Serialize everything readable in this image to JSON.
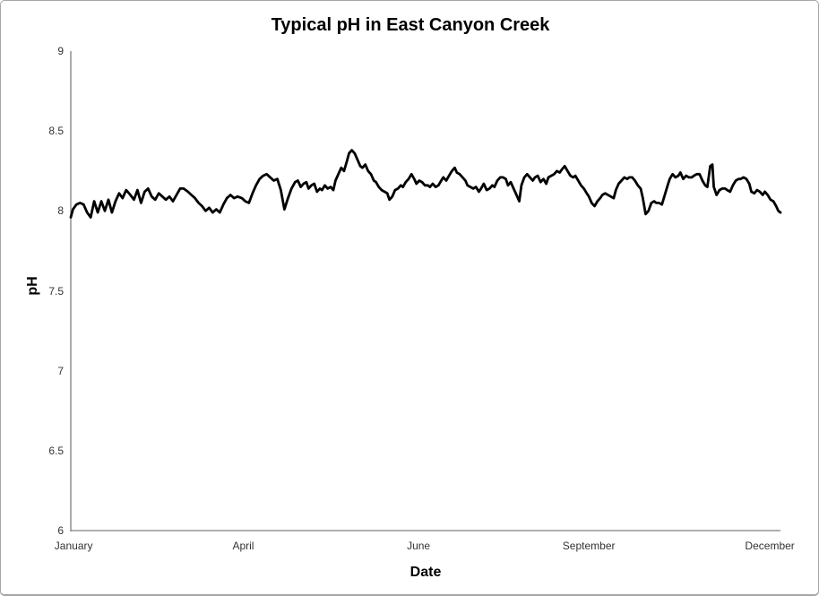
{
  "window": {
    "background_color": "#ffffff",
    "border_color": "#a6a6a6"
  },
  "chart_data": {
    "type": "line",
    "title": "Typical pH in East Canyon Creek",
    "xlabel": "Date",
    "ylabel": "pH",
    "ylim": [
      6,
      9
    ],
    "grid": false,
    "legend": "none",
    "line_color": "#000000",
    "line_width": 2.8,
    "axis_color": "#808080",
    "tick_label_color": "#333333",
    "ytick_labels": [
      "9",
      "8.5",
      "8",
      "7.5",
      "7",
      "6.5",
      "6"
    ],
    "ytick_values": [
      9,
      8.5,
      8,
      7.5,
      7,
      6.5,
      6
    ],
    "xticks": [
      {
        "label": "January",
        "f": 0.004
      },
      {
        "label": "April",
        "f": 0.243
      },
      {
        "label": "June",
        "f": 0.49
      },
      {
        "label": "September",
        "f": 0.73
      },
      {
        "label": "December",
        "f": 0.985
      }
    ],
    "series": [
      {
        "name": "Typical pH",
        "x_frac": [
          0.0,
          0.003,
          0.008,
          0.013,
          0.018,
          0.023,
          0.028,
          0.033,
          0.038,
          0.043,
          0.048,
          0.053,
          0.058,
          0.063,
          0.068,
          0.073,
          0.078,
          0.084,
          0.089,
          0.094,
          0.099,
          0.104,
          0.109,
          0.114,
          0.119,
          0.124,
          0.129,
          0.134,
          0.139,
          0.144,
          0.149,
          0.154,
          0.159,
          0.165,
          0.17,
          0.175,
          0.18,
          0.185,
          0.19,
          0.195,
          0.2,
          0.205,
          0.21,
          0.215,
          0.22,
          0.225,
          0.23,
          0.235,
          0.241,
          0.246,
          0.251,
          0.256,
          0.261,
          0.266,
          0.271,
          0.276,
          0.281,
          0.286,
          0.291,
          0.296,
          0.301,
          0.306,
          0.311,
          0.316,
          0.32,
          0.324,
          0.328,
          0.332,
          0.335,
          0.339,
          0.343,
          0.347,
          0.351,
          0.354,
          0.358,
          0.362,
          0.366,
          0.37,
          0.373,
          0.377,
          0.381,
          0.385,
          0.389,
          0.392,
          0.396,
          0.4,
          0.404,
          0.408,
          0.411,
          0.415,
          0.419,
          0.423,
          0.427,
          0.43,
          0.434,
          0.438,
          0.442,
          0.446,
          0.449,
          0.453,
          0.457,
          0.461,
          0.465,
          0.468,
          0.472,
          0.476,
          0.48,
          0.484,
          0.487,
          0.491,
          0.495,
          0.499,
          0.503,
          0.506,
          0.51,
          0.514,
          0.518,
          0.522,
          0.525,
          0.529,
          0.533,
          0.537,
          0.541,
          0.544,
          0.548,
          0.552,
          0.556,
          0.559,
          0.563,
          0.567,
          0.571,
          0.575,
          0.578,
          0.582,
          0.586,
          0.59,
          0.594,
          0.597,
          0.601,
          0.605,
          0.609,
          0.613,
          0.616,
          0.62,
          0.624,
          0.628,
          0.632,
          0.635,
          0.639,
          0.643,
          0.647,
          0.651,
          0.654,
          0.658,
          0.662,
          0.666,
          0.67,
          0.673,
          0.677,
          0.681,
          0.685,
          0.689,
          0.692,
          0.696,
          0.7,
          0.704,
          0.708,
          0.711,
          0.715,
          0.719,
          0.723,
          0.727,
          0.73,
          0.734,
          0.738,
          0.742,
          0.746,
          0.749,
          0.753,
          0.757,
          0.761,
          0.765,
          0.768,
          0.772,
          0.776,
          0.78,
          0.784,
          0.787,
          0.791,
          0.795,
          0.799,
          0.803,
          0.806,
          0.81,
          0.814,
          0.818,
          0.822,
          0.825,
          0.829,
          0.833,
          0.837,
          0.841,
          0.844,
          0.848,
          0.852,
          0.856,
          0.859,
          0.863,
          0.867,
          0.871,
          0.875,
          0.878,
          0.882,
          0.886,
          0.89,
          0.894,
          0.897,
          0.901,
          0.904,
          0.906,
          0.91,
          0.914,
          0.918,
          0.922,
          0.925,
          0.929,
          0.933,
          0.937,
          0.941,
          0.944,
          0.948,
          0.952,
          0.956,
          0.959,
          0.963,
          0.967,
          0.971,
          0.975,
          0.978,
          0.982,
          0.986,
          0.99,
          0.994,
          0.997,
          1.0
        ],
        "ph": [
          7.96,
          8.01,
          8.04,
          8.05,
          8.04,
          7.99,
          7.96,
          8.06,
          7.99,
          8.06,
          8.0,
          8.07,
          7.99,
          8.06,
          8.11,
          8.08,
          8.13,
          8.1,
          8.07,
          8.13,
          8.05,
          8.12,
          8.14,
          8.09,
          8.07,
          8.11,
          8.09,
          8.07,
          8.09,
          8.06,
          8.1,
          8.14,
          8.14,
          8.12,
          8.1,
          8.08,
          8.05,
          8.03,
          8.0,
          8.02,
          7.99,
          8.01,
          7.99,
          8.04,
          8.08,
          8.1,
          8.08,
          8.09,
          8.08,
          8.06,
          8.05,
          8.11,
          8.16,
          8.2,
          8.22,
          8.23,
          8.21,
          8.19,
          8.2,
          8.13,
          8.01,
          8.08,
          8.14,
          8.18,
          8.19,
          8.15,
          8.17,
          8.18,
          8.14,
          8.16,
          8.17,
          8.12,
          8.14,
          8.13,
          8.16,
          8.14,
          8.15,
          8.13,
          8.19,
          8.23,
          8.27,
          8.25,
          8.31,
          8.36,
          8.38,
          8.36,
          8.32,
          8.28,
          8.27,
          8.29,
          8.25,
          8.23,
          8.19,
          8.18,
          8.15,
          8.13,
          8.12,
          8.11,
          8.07,
          8.09,
          8.13,
          8.14,
          8.16,
          8.15,
          8.18,
          8.2,
          8.23,
          8.2,
          8.17,
          8.19,
          8.18,
          8.16,
          8.16,
          8.15,
          8.17,
          8.15,
          8.16,
          8.19,
          8.21,
          8.19,
          8.22,
          8.25,
          8.27,
          8.24,
          8.23,
          8.21,
          8.19,
          8.16,
          8.15,
          8.14,
          8.15,
          8.12,
          8.14,
          8.17,
          8.13,
          8.14,
          8.16,
          8.15,
          8.19,
          8.21,
          8.21,
          8.2,
          8.16,
          8.18,
          8.14,
          8.1,
          8.06,
          8.16,
          8.21,
          8.23,
          8.21,
          8.19,
          8.21,
          8.22,
          8.18,
          8.2,
          8.17,
          8.21,
          8.22,
          8.23,
          8.25,
          8.24,
          8.26,
          8.28,
          8.25,
          8.22,
          8.21,
          8.22,
          8.19,
          8.16,
          8.14,
          8.11,
          8.09,
          8.05,
          8.03,
          8.06,
          8.08,
          8.1,
          8.11,
          8.1,
          8.09,
          8.08,
          8.13,
          8.17,
          8.19,
          8.21,
          8.2,
          8.21,
          8.21,
          8.19,
          8.16,
          8.14,
          8.08,
          7.98,
          8.0,
          8.05,
          8.06,
          8.05,
          8.05,
          8.04,
          8.1,
          8.16,
          8.2,
          8.23,
          8.21,
          8.22,
          8.24,
          8.2,
          8.22,
          8.21,
          8.21,
          8.22,
          8.23,
          8.23,
          8.19,
          8.16,
          8.15,
          8.28,
          8.29,
          8.15,
          8.1,
          8.13,
          8.14,
          8.14,
          8.13,
          8.12,
          8.16,
          8.19,
          8.2,
          8.2,
          8.21,
          8.2,
          8.17,
          8.12,
          8.11,
          8.13,
          8.12,
          8.1,
          8.12,
          8.1,
          8.07,
          8.06,
          8.03,
          8.0,
          7.99
        ]
      }
    ]
  }
}
